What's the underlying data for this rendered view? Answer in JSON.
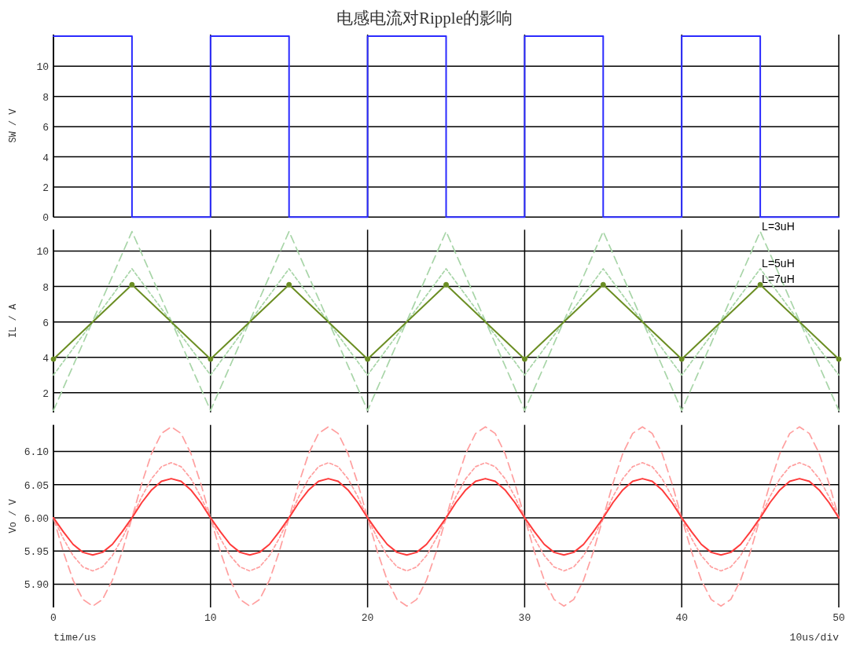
{
  "chart_data": [
    {
      "type": "step",
      "title": "电感电流对Ripple的影响",
      "ylabel": "SW / V",
      "xlim": [
        0,
        50
      ],
      "xticks": [
        0,
        10,
        20,
        30,
        40,
        50
      ],
      "ylim": [
        0,
        12.1
      ],
      "yticks": [
        0,
        2,
        4,
        6,
        8,
        10
      ],
      "grid": true,
      "tick_labels": "y",
      "x": [
        0,
        5,
        10,
        15,
        20,
        25,
        30,
        35,
        40,
        45,
        50
      ],
      "series": [
        {
          "color": "#2b2bff",
          "values": [
            12,
            0,
            12,
            0,
            12,
            0,
            12,
            0,
            12,
            0,
            0
          ]
        }
      ]
    },
    {
      "type": "line",
      "ylabel": "IL / A",
      "xlim": [
        0,
        50
      ],
      "xticks": [
        0,
        10,
        20,
        30,
        40,
        50
      ],
      "ylim": [
        0.9,
        11.2
      ],
      "yticks": [
        2,
        4,
        6,
        8,
        10
      ],
      "grid": true,
      "tick_labels": "y",
      "x": [
        0,
        5,
        10,
        15,
        20,
        25,
        30,
        35,
        40,
        45,
        50
      ],
      "series": [
        {
          "name": "L=3uH",
          "color": "#a8d5a8",
          "line_style": "dashed",
          "values": [
            1,
            11.1,
            1,
            11.1,
            1,
            11.1,
            1,
            11.1,
            1,
            11.1,
            1
          ]
        },
        {
          "name": "L=5uH",
          "color": "#a8d5a8",
          "line_style": "dotted",
          "values": [
            3,
            9,
            3,
            9,
            3,
            9,
            3,
            9,
            3,
            9,
            3
          ]
        },
        {
          "name": "L=7uH",
          "color": "#6b8e23",
          "line_style": "solid",
          "marker": "circle",
          "values": [
            3.9,
            8.1,
            3.9,
            8.1,
            3.9,
            8.1,
            3.9,
            8.1,
            3.9,
            8.1,
            3.9
          ]
        }
      ]
    },
    {
      "type": "line",
      "ylabel": "Vo / V",
      "xlabel": "time/us",
      "annotations": [
        "10us/div"
      ],
      "xlim": [
        0,
        50
      ],
      "xticks": [
        0,
        10,
        20,
        30,
        40,
        50
      ],
      "ylim": [
        5.865,
        6.14
      ],
      "yticks": [
        {
          "value": 5.9,
          "label": "5.90"
        },
        {
          "value": 5.95,
          "label": "5.95"
        },
        {
          "value": 6.0,
          "label": "6.00"
        },
        {
          "value": 6.05,
          "label": "6.05"
        },
        {
          "value": 6.1,
          "label": "6.10"
        }
      ],
      "grid": true,
      "x": [
        0,
        0.625,
        1.25,
        1.875,
        2.5,
        3.125,
        3.75,
        4.375,
        5,
        5.625,
        6.25,
        6.875,
        7.5,
        8.125,
        8.75,
        9.375,
        10,
        10.625,
        11.25,
        11.875,
        12.5,
        13.125,
        13.75,
        14.375,
        15,
        15.625,
        16.25,
        16.875,
        17.5,
        18.125,
        18.75,
        19.375,
        20,
        20.625,
        21.25,
        21.875,
        22.5,
        23.125,
        23.75,
        24.375,
        25,
        25.625,
        26.25,
        26.875,
        27.5,
        28.125,
        28.75,
        29.375,
        30,
        30.625,
        31.25,
        31.875,
        32.5,
        33.125,
        33.75,
        34.375,
        35,
        35.625,
        36.25,
        36.875,
        37.5,
        38.125,
        38.75,
        39.375,
        40,
        40.625,
        41.25,
        41.875,
        42.5,
        43.125,
        43.75,
        44.375,
        45,
        45.625,
        46.25,
        46.875,
        47.5,
        48.125,
        48.75,
        49.375,
        50
      ],
      "series": [
        {
          "color": "#ff9f9f",
          "line_style": "dashed",
          "values": [
            6.0,
            5.949,
            5.906,
            5.877,
            5.867,
            5.877,
            5.906,
            5.949,
            6.0,
            6.052,
            6.097,
            6.127,
            6.137,
            6.127,
            6.097,
            6.052,
            6.0,
            5.949,
            5.906,
            5.877,
            5.867,
            5.877,
            5.906,
            5.949,
            6.0,
            6.052,
            6.097,
            6.127,
            6.137,
            6.127,
            6.097,
            6.052,
            6.0,
            5.949,
            5.906,
            5.877,
            5.867,
            5.877,
            5.906,
            5.949,
            6.0,
            6.052,
            6.097,
            6.127,
            6.137,
            6.127,
            6.097,
            6.052,
            6.0,
            5.949,
            5.906,
            5.877,
            5.867,
            5.877,
            5.906,
            5.949,
            6.0,
            6.052,
            6.097,
            6.127,
            6.137,
            6.127,
            6.097,
            6.052,
            6.0,
            5.949,
            5.906,
            5.877,
            5.867,
            5.877,
            5.906,
            5.949,
            6.0,
            6.052,
            6.097,
            6.127,
            6.137,
            6.127,
            6.097,
            6.052,
            6.0
          ]
        },
        {
          "color": "#ff9f9f",
          "line_style": "dotted",
          "values": [
            6.0,
            5.969,
            5.943,
            5.926,
            5.92,
            5.926,
            5.943,
            5.969,
            6.0,
            6.032,
            6.059,
            6.077,
            6.083,
            6.077,
            6.059,
            6.032,
            6.0,
            5.969,
            5.943,
            5.926,
            5.92,
            5.926,
            5.943,
            5.969,
            6.0,
            6.032,
            6.059,
            6.077,
            6.083,
            6.077,
            6.059,
            6.032,
            6.0,
            5.969,
            5.943,
            5.926,
            5.92,
            5.926,
            5.943,
            5.969,
            6.0,
            6.032,
            6.059,
            6.077,
            6.083,
            6.077,
            6.059,
            6.032,
            6.0,
            5.969,
            5.943,
            5.926,
            5.92,
            5.926,
            5.943,
            5.969,
            6.0,
            6.032,
            6.059,
            6.077,
            6.083,
            6.077,
            6.059,
            6.032,
            6.0,
            5.969,
            5.943,
            5.926,
            5.92,
            5.926,
            5.943,
            5.969,
            6.0,
            6.032,
            6.059,
            6.077,
            6.083,
            6.077,
            6.059,
            6.032,
            6.0
          ]
        },
        {
          "color": "#ff3b3b",
          "line_style": "solid",
          "values": [
            6.0,
            5.979,
            5.96,
            5.948,
            5.944,
            5.948,
            5.96,
            5.979,
            6.0,
            6.023,
            6.042,
            6.055,
            6.059,
            6.055,
            6.042,
            6.023,
            6.0,
            5.979,
            5.96,
            5.948,
            5.944,
            5.948,
            5.96,
            5.979,
            6.0,
            6.023,
            6.042,
            6.055,
            6.059,
            6.055,
            6.042,
            6.023,
            6.0,
            5.979,
            5.96,
            5.948,
            5.944,
            5.948,
            5.96,
            5.979,
            6.0,
            6.023,
            6.042,
            6.055,
            6.059,
            6.055,
            6.042,
            6.023,
            6.0,
            5.979,
            5.96,
            5.948,
            5.944,
            5.948,
            5.96,
            5.979,
            6.0,
            6.023,
            6.042,
            6.055,
            6.059,
            6.055,
            6.042,
            6.023,
            6.0,
            5.979,
            5.96,
            5.948,
            5.944,
            5.948,
            5.96,
            5.979,
            6.0,
            6.023,
            6.042,
            6.055,
            6.059,
            6.055,
            6.042,
            6.023,
            6.0
          ]
        }
      ]
    }
  ]
}
